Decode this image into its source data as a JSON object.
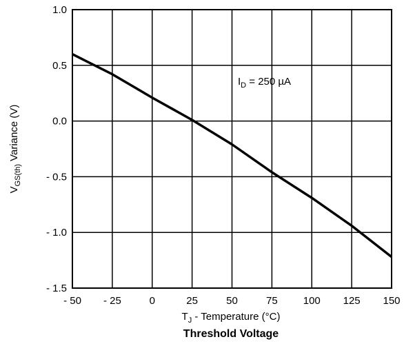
{
  "chart_data": {
    "type": "line",
    "title": "Threshold Voltage",
    "xlabel": {
      "main": "T",
      "sub": "J",
      "rest": " - Temperature (°C)"
    },
    "ylabel": {
      "main": "V",
      "sub": "GS(th)",
      "rest": "  Variance (V)"
    },
    "annotation": {
      "main": "I",
      "sub": "D",
      "rest": " = 250 µA"
    },
    "xlim": [
      -50,
      150
    ],
    "ylim": [
      -1.5,
      1.0
    ],
    "x_ticks": [
      -50,
      -25,
      0,
      25,
      50,
      75,
      100,
      125,
      150
    ],
    "x_tick_labels": [
      "- 50",
      "- 25",
      "0",
      "25",
      "50",
      "75",
      "100",
      "125",
      "150"
    ],
    "y_ticks": [
      1.0,
      0.5,
      0.0,
      -0.5,
      -1.0,
      -1.5
    ],
    "y_tick_labels": [
      "1.0",
      "0.5",
      "0.0",
      "- 0.5",
      "- 1.0",
      "- 1.5"
    ],
    "grid": true,
    "series": [
      {
        "x": [
          -50,
          -25,
          0,
          25,
          50,
          75,
          100,
          125,
          150
        ],
        "y": [
          0.6,
          0.42,
          0.21,
          0.01,
          -0.21,
          -0.46,
          -0.69,
          -0.94,
          -1.22
        ],
        "color": "#000000"
      }
    ]
  }
}
